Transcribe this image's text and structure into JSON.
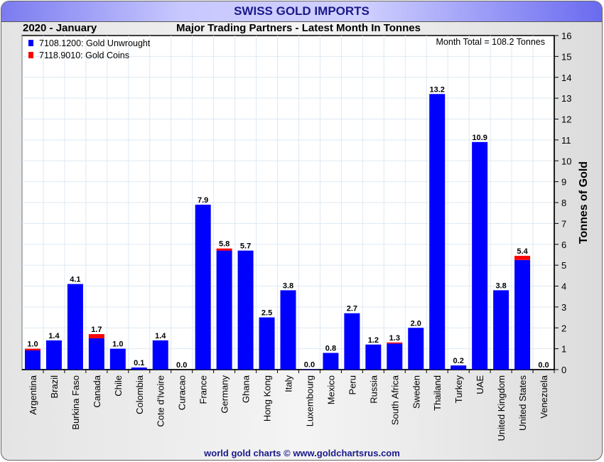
{
  "header": {
    "title": "SWISS GOLD IMPORTS",
    "period": "2020 - January",
    "subtitle": "Major Trading Partners - Latest Month In Tonnes"
  },
  "footer": "world gold charts © www.goldchartsrus.com",
  "colors": {
    "unwrought": "#0000ff",
    "coins": "#ff0000"
  },
  "chart_data": {
    "type": "bar",
    "stacked": true,
    "title": "SWISS GOLD IMPORTS",
    "annotation": "Month Total = 108.2 Tonnes",
    "ylabel": "Tonnes of Gold",
    "xlabel": "",
    "ylim": [
      0,
      16
    ],
    "yticks": [
      "0",
      "1",
      "2",
      "3",
      "4",
      "5",
      "6",
      "7",
      "8",
      "9",
      "10",
      "11",
      "12",
      "13",
      "14",
      "15",
      "16"
    ],
    "grid": true,
    "legend_position": "top-left",
    "categories": [
      "Argentina",
      "Brazil",
      "Burkina Faso",
      "Canada",
      "Chile",
      "Colombia",
      "Cote d'Ivoire",
      "Curacao",
      "France",
      "Germany",
      "Ghana",
      "Hong Kong",
      "Italy",
      "Luxembourg",
      "Mexico",
      "Peru",
      "Russia",
      "South Africa",
      "Sweden",
      "Thailand",
      "Turkey",
      "UAE",
      "United Kingdom",
      "United States",
      "Venezuela"
    ],
    "series": [
      {
        "name": "7108.1200: Gold Unwrought",
        "values": [
          0.92,
          1.4,
          4.1,
          1.5,
          1.0,
          0.1,
          1.4,
          0.0,
          7.9,
          5.7,
          5.7,
          2.5,
          3.8,
          0.02,
          0.8,
          2.7,
          1.2,
          1.25,
          2.0,
          13.2,
          0.2,
          10.9,
          3.8,
          5.25,
          0.0
        ]
      },
      {
        "name": "7118.9010: Gold Coins",
        "values": [
          0.08,
          0.0,
          0.0,
          0.2,
          0.0,
          0.0,
          0.0,
          0.0,
          0.0,
          0.1,
          0.0,
          0.0,
          0.0,
          0.0,
          0.0,
          0.0,
          0.0,
          0.05,
          0.0,
          0.0,
          0.0,
          0.0,
          0.0,
          0.2,
          0.0
        ]
      }
    ],
    "totals_labels": [
      "1.0",
      "1.4",
      "4.1",
      "1.7",
      "1.0",
      "0.1",
      "1.4",
      "0.0",
      "7.9",
      "5.8",
      "5.7",
      "2.5",
      "3.8",
      "0.0",
      "0.8",
      "2.7",
      "1.2",
      "1.3",
      "2.0",
      "13.2",
      "0.2",
      "10.9",
      "3.8",
      "5.4",
      "0.0"
    ]
  }
}
